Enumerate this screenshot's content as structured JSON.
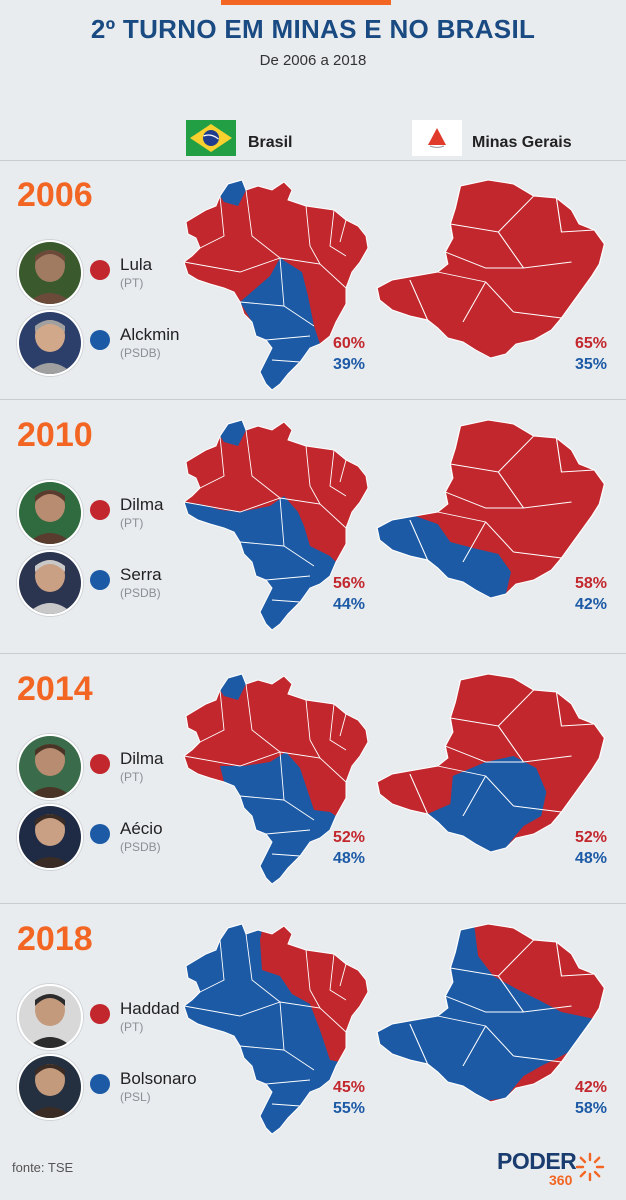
{
  "header": {
    "title": "2º TURNO EM MINAS E NO BRASIL",
    "subtitle": "De 2006 a 2018"
  },
  "legend": {
    "brasil_label": "Brasil",
    "minas_label": "Minas Gerais",
    "brasil_flag_icon": "brazil-flag-icon",
    "minas_flag_icon": "minas-gerais-flag-icon"
  },
  "colors": {
    "pt_red": "#c1272d",
    "psdb_blue": "#1c5aa6",
    "accent_orange": "#f26522"
  },
  "elections": [
    {
      "year": "2006",
      "candidates": [
        {
          "name": "Lula",
          "party": "(PT)",
          "color": "red"
        },
        {
          "name": "Alckmin",
          "party": "(PSDB)",
          "color": "blue"
        }
      ],
      "brasil": {
        "red_pct": "60%",
        "blue_pct": "39%"
      },
      "minas": {
        "red_pct": "65%",
        "blue_pct": "35%"
      }
    },
    {
      "year": "2010",
      "candidates": [
        {
          "name": "Dilma",
          "party": "(PT)",
          "color": "red"
        },
        {
          "name": "Serra",
          "party": "(PSDB)",
          "color": "blue"
        }
      ],
      "brasil": {
        "red_pct": "56%",
        "blue_pct": "44%"
      },
      "minas": {
        "red_pct": "58%",
        "blue_pct": "42%"
      }
    },
    {
      "year": "2014",
      "candidates": [
        {
          "name": "Dilma",
          "party": "(PT)",
          "color": "red"
        },
        {
          "name": "Aécio",
          "party": "(PSDB)",
          "color": "blue"
        }
      ],
      "brasil": {
        "red_pct": "52%",
        "blue_pct": "48%"
      },
      "minas": {
        "red_pct": "52%",
        "blue_pct": "48%"
      }
    },
    {
      "year": "2018",
      "candidates": [
        {
          "name": "Haddad",
          "party": "(PT)",
          "color": "red"
        },
        {
          "name": "Bolsonaro",
          "party": "(PSL)",
          "color": "blue"
        }
      ],
      "brasil": {
        "red_pct": "45%",
        "blue_pct": "55%"
      },
      "minas": {
        "red_pct": "42%",
        "blue_pct": "58%"
      }
    }
  ],
  "footer": {
    "source": "fonte: TSE",
    "logo_text": "PODER",
    "logo_number": "360"
  }
}
